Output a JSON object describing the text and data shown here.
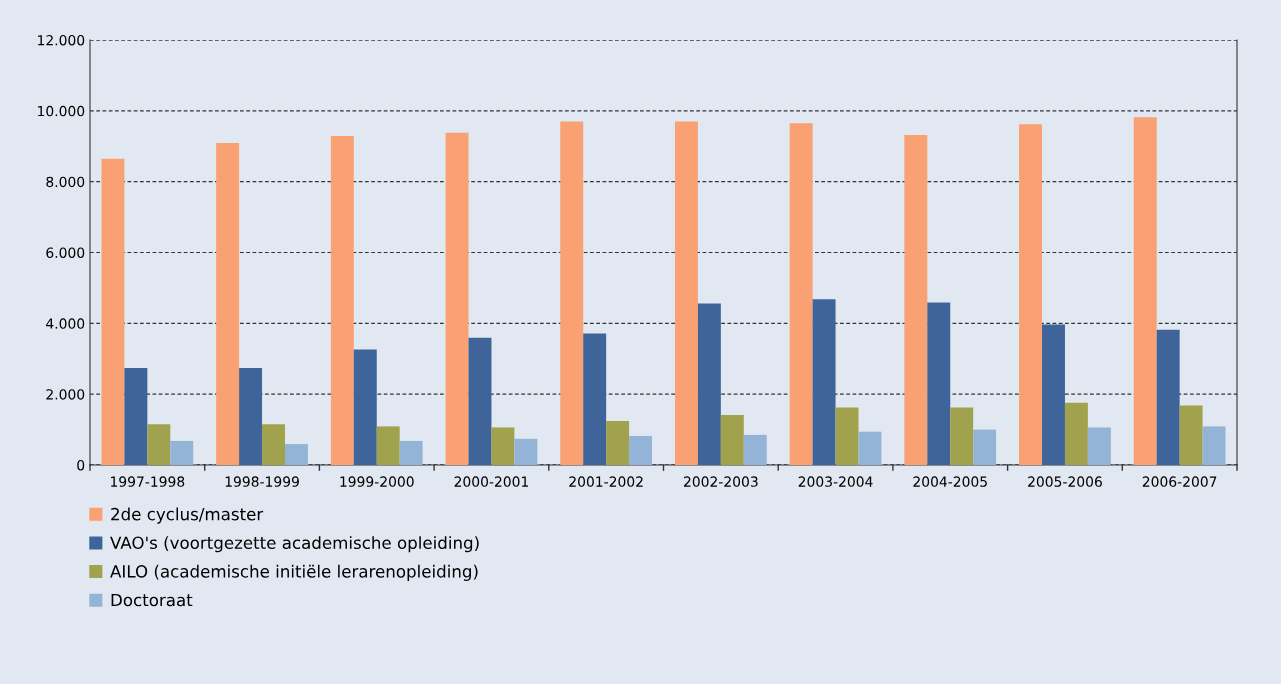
{
  "chart_data": {
    "type": "bar",
    "categories": [
      "1997-1998",
      "1998-1999",
      "1999-2000",
      "2000-2001",
      "2001-2002",
      "2002-2003",
      "2003-2004",
      "2004-2005",
      "2005-2006",
      "2006-2007"
    ],
    "series": [
      {
        "name": "2de cyclus/master",
        "color": "#f9a173",
        "values": [
          8650,
          9090,
          9290,
          9380,
          9700,
          9700,
          9650,
          9320,
          9620,
          9820
        ]
      },
      {
        "name": "VAO's (voortgezette academische opleiding)",
        "color": "#3e6499",
        "values": [
          2740,
          2740,
          3260,
          3590,
          3710,
          4560,
          4680,
          4590,
          3970,
          3820
        ]
      },
      {
        "name": "AILO (academische initiële lerarenopleiding)",
        "color": "#a0a24e",
        "values": [
          1150,
          1150,
          1090,
          1060,
          1240,
          1410,
          1620,
          1620,
          1760,
          1680
        ]
      },
      {
        "name": "Doctoraat",
        "color": "#93b4d6",
        "values": [
          680,
          590,
          680,
          740,
          820,
          850,
          940,
          1000,
          1060,
          1090
        ]
      }
    ],
    "ylim": [
      0,
      12000
    ],
    "yticks": [
      0,
      {
        "value": 2000,
        "label": "2.000"
      },
      {
        "value": 4000,
        "label": "4.000"
      },
      {
        "value": 6000,
        "label": "6.000"
      },
      {
        "value": 8000,
        "label": "8.000"
      },
      {
        "value": 10000,
        "label": "10.000"
      },
      {
        "value": 12000,
        "label": "12.000"
      }
    ],
    "grid": "y",
    "legend": "bottom"
  }
}
